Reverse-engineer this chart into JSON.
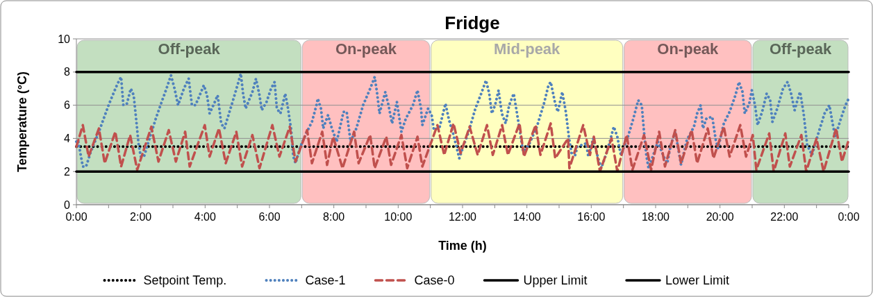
{
  "chart_data": {
    "type": "line",
    "title": "Fridge",
    "xlabel": "Time (h)",
    "ylabel": "Temperature (°C)",
    "xlim": [
      0,
      24
    ],
    "xticks": [
      {
        "value": 0,
        "label": "0:00"
      },
      {
        "value": 1,
        "label": null
      },
      {
        "value": 2,
        "label": "2:00"
      },
      {
        "value": 3,
        "label": null
      },
      {
        "value": 4,
        "label": "4:00"
      },
      {
        "value": 5,
        "label": null
      },
      {
        "value": 6,
        "label": "6:00"
      },
      {
        "value": 7,
        "label": null
      },
      {
        "value": 8,
        "label": "8:00"
      },
      {
        "value": 9,
        "label": null
      },
      {
        "value": 10,
        "label": "10:00"
      },
      {
        "value": 11,
        "label": null
      },
      {
        "value": 12,
        "label": "12:00"
      },
      {
        "value": 13,
        "label": null
      },
      {
        "value": 14,
        "label": "14:00"
      },
      {
        "value": 15,
        "label": null
      },
      {
        "value": 16,
        "label": "16:00"
      },
      {
        "value": 17,
        "label": null
      },
      {
        "value": 18,
        "label": "18:00"
      },
      {
        "value": 19,
        "label": null
      },
      {
        "value": 20,
        "label": "20:00"
      },
      {
        "value": 21,
        "label": null
      },
      {
        "value": 22,
        "label": "22:00"
      },
      {
        "value": 23,
        "label": null
      },
      {
        "value": 24,
        "label": "0:00"
      }
    ],
    "ylim": [
      0,
      10
    ],
    "yticks": [
      0,
      2,
      4,
      6,
      8,
      10
    ],
    "grid": "y",
    "legend": "bottom",
    "bands": [
      {
        "axis": "x",
        "from": 0,
        "to": 7,
        "label": "Off-peak",
        "color": "#c3dfc0"
      },
      {
        "axis": "x",
        "from": 7,
        "to": 11,
        "label": "On-peak",
        "color": "#ffc0c0"
      },
      {
        "axis": "x",
        "from": 11,
        "to": 17,
        "label": "Mid-peak",
        "color": "#ffffc0"
      },
      {
        "axis": "x",
        "from": 17,
        "to": 21,
        "label": "On-peak",
        "color": "#ffc0c0"
      },
      {
        "axis": "x",
        "from": 21,
        "to": 24,
        "label": "Off-peak",
        "color": "#c3dfc0"
      }
    ],
    "series": [
      {
        "name": "Setpoint Temp.",
        "color": "#000000",
        "line_style": "dotted",
        "x": [
          0,
          24
        ],
        "values": [
          3.5,
          3.5
        ]
      },
      {
        "name": "Case-1",
        "color": "#4f81bd",
        "line_style": "dotted",
        "x": [
          0,
          0.05,
          0.2,
          0.3,
          0.45,
          0.7,
          0.85,
          1.0,
          1.17,
          1.28,
          1.39,
          1.46,
          1.57,
          1.69,
          1.78,
          1.86,
          1.93,
          2.0,
          2.1,
          2.29,
          2.47,
          2.65,
          2.8,
          2.94,
          3.05,
          3.16,
          3.34,
          3.49,
          3.59,
          3.7,
          3.81,
          3.96,
          4.06,
          4.14,
          4.28,
          4.39,
          4.5,
          4.6,
          4.79,
          4.93,
          5.11,
          5.18,
          5.26,
          5.47,
          5.58,
          5.69,
          5.76,
          5.91,
          6.05,
          6.16,
          6.23,
          6.34,
          6.49,
          6.56,
          6.67,
          6.74,
          6.81,
          6.96,
          7.14,
          7.32,
          7.46,
          7.5,
          7.6,
          7.67,
          7.82,
          7.94,
          8.09,
          8.3,
          8.4,
          8.52,
          8.7,
          8.91,
          9.13,
          9.27,
          9.34,
          9.42,
          9.6,
          9.7,
          9.81,
          9.96,
          10.1,
          10.24,
          10.46,
          10.6,
          10.71,
          10.75,
          10.93,
          11.04,
          11.11,
          11.29,
          11.47,
          11.58,
          11.72,
          11.9,
          12.04,
          12.19,
          12.4,
          12.58,
          12.73,
          12.83,
          12.91,
          13.01,
          13.12,
          13.22,
          13.34,
          13.45,
          13.59,
          13.77,
          13.88,
          14.06,
          14.31,
          14.53,
          14.67,
          14.74,
          14.88,
          14.96,
          15.1,
          15.21,
          15.31,
          15.39,
          15.5,
          15.57,
          15.84,
          15.91,
          16.06,
          16.2,
          16.31,
          16.49,
          16.7,
          16.81,
          16.92,
          17.14,
          17.28,
          17.46,
          17.57,
          17.64,
          17.71,
          17.78,
          17.93,
          18.07,
          18.25,
          18.36,
          18.47,
          18.61,
          18.79,
          18.97,
          19.19,
          19.29,
          19.4,
          19.47,
          19.58,
          19.76,
          19.87,
          19.94,
          20.12,
          20.3,
          20.48,
          20.59,
          20.7,
          20.77,
          20.91,
          20.99,
          21.09,
          21.17,
          21.31,
          21.45,
          21.56,
          21.63,
          21.78,
          21.96,
          22.1,
          22.21,
          22.32,
          22.42,
          22.49,
          22.6,
          22.71,
          22.86,
          23.04,
          23.25,
          23.4,
          23.5,
          23.58,
          23.76,
          23.9,
          24
        ],
        "values": [
          3.8,
          3.9,
          2.3,
          2.3,
          3.2,
          4.4,
          5.2,
          6.0,
          6.8,
          7.3,
          7.7,
          6.0,
          6.1,
          7.0,
          6.6,
          5.1,
          3.7,
          2.9,
          2.9,
          4.1,
          5.2,
          6.2,
          7.0,
          7.8,
          7.0,
          6.0,
          7.0,
          7.6,
          6.0,
          6.0,
          6.5,
          7.2,
          6.6,
          5.5,
          6.1,
          6.6,
          4.9,
          4.6,
          5.8,
          6.7,
          7.9,
          6.7,
          5.8,
          6.8,
          7.6,
          6.6,
          5.7,
          6.2,
          7.0,
          7.4,
          5.8,
          5.5,
          6.7,
          6.0,
          4.6,
          2.9,
          2.5,
          3.5,
          4.3,
          5.0,
          6.0,
          6.4,
          5.8,
          4.6,
          5.4,
          4.6,
          3.8,
          5.6,
          5.6,
          3.8,
          4.6,
          6.0,
          7.0,
          7.7,
          6.8,
          5.5,
          6.8,
          6.0,
          4.9,
          6.2,
          4.4,
          5.2,
          6.0,
          6.9,
          5.8,
          4.8,
          5.8,
          5.4,
          4.5,
          4.7,
          6.1,
          5.1,
          4.2,
          2.8,
          3.6,
          4.4,
          5.8,
          6.7,
          7.5,
          6.7,
          5.5,
          6.0,
          6.9,
          5.5,
          4.9,
          6.0,
          6.7,
          4.6,
          3.2,
          3.6,
          4.7,
          6.1,
          7.2,
          7.4,
          6.1,
          5.6,
          6.8,
          5.6,
          4.0,
          3.1,
          3.0,
          3.5,
          3.7,
          2.9,
          4.0,
          2.9,
          2.2,
          3.2,
          4.7,
          4.1,
          3.0,
          4.1,
          5.0,
          6.3,
          6.0,
          4.4,
          3.0,
          2.2,
          3.0,
          3.8,
          2.9,
          2.5,
          3.6,
          4.4,
          2.4,
          3.9,
          4.7,
          5.5,
          6.0,
          4.6,
          5.2,
          5.3,
          3.9,
          3.4,
          4.9,
          5.6,
          6.6,
          7.4,
          6.8,
          5.5,
          6.1,
          6.9,
          6.0,
          4.8,
          5.6,
          6.7,
          6.3,
          5.0,
          5.8,
          7.0,
          7.4,
          6.7,
          5.7,
          6.4,
          6.8,
          5.5,
          3.6,
          3.0,
          4.2,
          5.5,
          6.0,
          4.9,
          4.1,
          5.2,
          6.0,
          6.4
        ]
      },
      {
        "name": "Case-0",
        "color": "#c0504d",
        "line_style": "dashed",
        "x": [
          0,
          0.2,
          0.38,
          0.7,
          0.88,
          1.21,
          1.39,
          1.67,
          1.89,
          2.33,
          2.55,
          2.87,
          3.09,
          3.38,
          3.52,
          3.99,
          4.14,
          4.43,
          4.64,
          4.97,
          5.15,
          5.47,
          5.69,
          6.09,
          6.31,
          6.63,
          6.81,
          7.17,
          7.32,
          7.64,
          7.79,
          7.98,
          8.27,
          8.63,
          8.77,
          9.13,
          9.27,
          9.63,
          9.78,
          10.1,
          10.28,
          10.6,
          10.75,
          11.22,
          11.43,
          11.72,
          11.94,
          12.22,
          12.47,
          12.76,
          12.94,
          13.23,
          13.41,
          13.77,
          13.91,
          14.27,
          14.42,
          14.74,
          14.88,
          15.28,
          15.32,
          15.75,
          15.96,
          16.08,
          16.27,
          16.63,
          16.81,
          17.1,
          17.28,
          17.64,
          17.86,
          18.11,
          18.29,
          18.61,
          18.79,
          19.12,
          19.29,
          19.62,
          19.8,
          20.12,
          20.3,
          20.63,
          20.81,
          21.02,
          21.13,
          21.53,
          21.67,
          22.03,
          22.17,
          22.53,
          22.68,
          23.0,
          23.22,
          23.61,
          23.79,
          24
        ],
        "values": [
          3.5,
          4.8,
          2.9,
          4.6,
          2.5,
          4.4,
          2.3,
          4.2,
          2.1,
          4.7,
          2.6,
          4.5,
          2.6,
          4.4,
          2.3,
          4.8,
          2.9,
          4.6,
          2.5,
          4.4,
          2.3,
          4.2,
          2.2,
          4.8,
          2.9,
          4.7,
          2.6,
          4.5,
          2.5,
          4.4,
          2.4,
          4.1,
          2.2,
          4.4,
          2.5,
          4.2,
          2.2,
          4.1,
          2.4,
          4.2,
          2.2,
          4.1,
          2.3,
          4.8,
          3.0,
          4.9,
          3.1,
          4.7,
          3.0,
          4.8,
          3.0,
          4.8,
          3.0,
          4.9,
          2.9,
          4.8,
          3.0,
          4.9,
          2.8,
          4.0,
          2.2,
          4.8,
          3.0,
          4.1,
          2.0,
          4.0,
          2.0,
          4.2,
          2.1,
          4.2,
          2.1,
          4.4,
          2.3,
          4.5,
          2.5,
          4.5,
          2.5,
          4.6,
          2.8,
          4.7,
          2.9,
          4.8,
          2.9,
          4.2,
          2.1,
          4.3,
          2.0,
          4.3,
          2.3,
          4.2,
          2.0,
          4.0,
          2.0,
          4.6,
          2.6,
          3.9
        ]
      },
      {
        "name": "Upper Limit",
        "color": "#000000",
        "line_style": "solid",
        "x": [
          0,
          24
        ],
        "values": [
          8,
          8
        ]
      },
      {
        "name": "Lower Limit",
        "color": "#000000",
        "line_style": "solid",
        "x": [
          0,
          24
        ],
        "values": [
          2,
          2
        ]
      }
    ]
  }
}
